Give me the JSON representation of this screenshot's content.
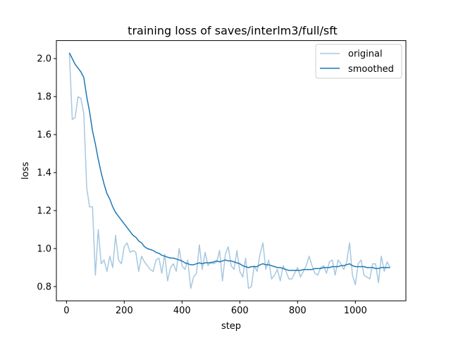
{
  "chart_data": {
    "type": "line",
    "title": "training loss of saves/interlm3/full/sft",
    "xlabel": "step",
    "ylabel": "loss",
    "xlim": [
      -35,
      1175
    ],
    "ylim": [
      0.725,
      2.095
    ],
    "xticks": [
      0,
      200,
      400,
      600,
      800,
      1000
    ],
    "yticks": [
      0.8,
      1.0,
      1.2,
      1.4,
      1.6,
      1.8,
      2.0
    ],
    "xtick_labels": [
      "0",
      "200",
      "400",
      "600",
      "800",
      "1000"
    ],
    "ytick_labels": [
      "0.8",
      "1.0",
      "1.2",
      "1.4",
      "1.6",
      "1.8",
      "2.0"
    ],
    "grid": false,
    "legend_position": "upper right",
    "series": [
      {
        "name": "original",
        "color": "#a6c8e0",
        "x": [
          10,
          20,
          30,
          40,
          50,
          60,
          70,
          80,
          90,
          100,
          110,
          120,
          130,
          140,
          150,
          160,
          170,
          180,
          190,
          200,
          210,
          220,
          230,
          240,
          250,
          260,
          270,
          280,
          290,
          300,
          310,
          320,
          330,
          340,
          350,
          360,
          370,
          380,
          390,
          400,
          410,
          420,
          430,
          440,
          450,
          460,
          470,
          480,
          490,
          500,
          510,
          520,
          530,
          540,
          550,
          560,
          570,
          580,
          590,
          600,
          610,
          620,
          630,
          640,
          650,
          660,
          670,
          680,
          690,
          700,
          710,
          720,
          730,
          740,
          750,
          760,
          770,
          780,
          790,
          800,
          810,
          820,
          830,
          840,
          850,
          860,
          870,
          880,
          890,
          900,
          910,
          920,
          930,
          940,
          950,
          960,
          970,
          980,
          990,
          1000,
          1010,
          1020,
          1030,
          1040,
          1050,
          1060,
          1070,
          1080,
          1090,
          1100,
          1110,
          1120
        ],
        "y": [
          2.03,
          1.68,
          1.69,
          1.8,
          1.79,
          1.71,
          1.32,
          1.22,
          1.22,
          0.86,
          1.1,
          0.92,
          0.94,
          0.88,
          0.96,
          0.9,
          1.07,
          0.94,
          0.92,
          1.01,
          1.03,
          0.98,
          0.99,
          0.98,
          0.88,
          0.96,
          0.93,
          0.91,
          0.89,
          0.88,
          0.94,
          0.95,
          0.87,
          0.97,
          0.83,
          0.9,
          0.92,
          0.88,
          1.0,
          0.91,
          0.89,
          0.94,
          0.79,
          0.85,
          0.87,
          1.02,
          0.89,
          0.98,
          0.91,
          0.93,
          0.92,
          0.93,
          0.99,
          0.83,
          0.97,
          1.01,
          0.91,
          0.89,
          0.99,
          0.88,
          0.85,
          0.95,
          0.79,
          0.8,
          0.91,
          0.88,
          0.97,
          1.03,
          0.89,
          0.94,
          0.84,
          0.86,
          0.89,
          0.83,
          0.91,
          0.88,
          0.84,
          0.84,
          0.87,
          0.9,
          0.85,
          0.88,
          0.91,
          0.96,
          0.91,
          0.87,
          0.86,
          0.9,
          0.91,
          0.87,
          0.93,
          0.94,
          0.86,
          0.94,
          0.92,
          0.89,
          0.93,
          1.03,
          0.86,
          0.81,
          0.92,
          0.94,
          0.86,
          0.85,
          0.84,
          0.92,
          0.92,
          0.82,
          0.96,
          0.88,
          0.93,
          0.9
        ]
      },
      {
        "name": "smoothed",
        "color": "#1f77b4",
        "x": [
          10,
          20,
          30,
          40,
          50,
          60,
          70,
          80,
          90,
          100,
          110,
          120,
          130,
          140,
          150,
          160,
          170,
          180,
          190,
          200,
          210,
          220,
          230,
          240,
          250,
          260,
          270,
          280,
          290,
          300,
          310,
          320,
          330,
          340,
          350,
          360,
          370,
          380,
          390,
          400,
          410,
          420,
          430,
          440,
          450,
          460,
          470,
          480,
          490,
          500,
          510,
          520,
          530,
          540,
          550,
          560,
          570,
          580,
          590,
          600,
          610,
          620,
          630,
          640,
          650,
          660,
          670,
          680,
          690,
          700,
          710,
          720,
          730,
          740,
          750,
          760,
          770,
          780,
          790,
          800,
          810,
          820,
          830,
          840,
          850,
          860,
          870,
          880,
          890,
          900,
          910,
          920,
          930,
          940,
          950,
          960,
          970,
          980,
          990,
          1000,
          1010,
          1020,
          1030,
          1040,
          1050,
          1060,
          1070,
          1080,
          1090,
          1100,
          1110,
          1120
        ],
        "y": [
          2.03,
          2.0,
          1.97,
          1.95,
          1.93,
          1.9,
          1.8,
          1.72,
          1.62,
          1.55,
          1.47,
          1.4,
          1.34,
          1.29,
          1.26,
          1.22,
          1.19,
          1.17,
          1.15,
          1.13,
          1.11,
          1.09,
          1.07,
          1.06,
          1.04,
          1.03,
          1.01,
          1.0,
          0.995,
          0.99,
          0.98,
          0.975,
          0.965,
          0.96,
          0.955,
          0.95,
          0.95,
          0.945,
          0.94,
          0.935,
          0.925,
          0.92,
          0.915,
          0.915,
          0.92,
          0.925,
          0.92,
          0.925,
          0.925,
          0.925,
          0.93,
          0.935,
          0.93,
          0.935,
          0.94,
          0.935,
          0.935,
          0.93,
          0.925,
          0.92,
          0.91,
          0.905,
          0.9,
          0.905,
          0.905,
          0.905,
          0.915,
          0.92,
          0.915,
          0.915,
          0.91,
          0.905,
          0.9,
          0.9,
          0.895,
          0.89,
          0.885,
          0.885,
          0.885,
          0.885,
          0.885,
          0.89,
          0.89,
          0.89,
          0.89,
          0.895,
          0.895,
          0.895,
          0.9,
          0.9,
          0.9,
          0.905,
          0.905,
          0.905,
          0.91,
          0.91,
          0.915,
          0.92,
          0.91,
          0.905,
          0.905,
          0.905,
          0.905,
          0.9,
          0.9,
          0.9,
          0.895,
          0.895,
          0.9,
          0.9,
          0.9,
          0.9
        ]
      }
    ]
  }
}
